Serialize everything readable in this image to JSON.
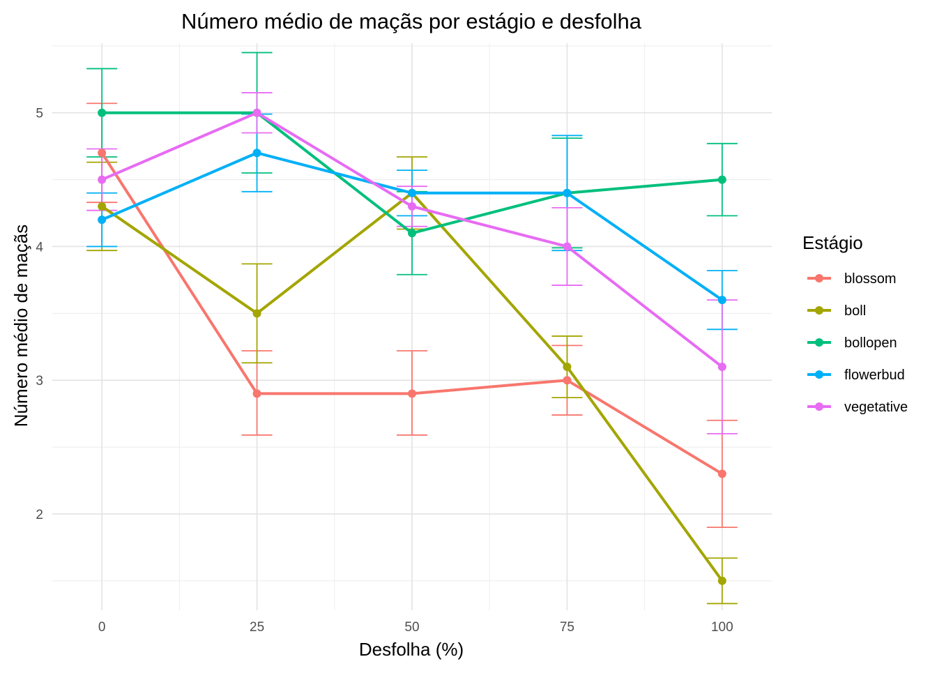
{
  "chart_data": {
    "type": "line",
    "title": "Número médio de maçãs por estágio e desfolha",
    "xlabel": "Desfolha (%)",
    "ylabel": "Número médio de maçãs",
    "x": [
      0,
      25,
      50,
      75,
      100
    ],
    "x_ticks": [
      "0",
      "25",
      "50",
      "75",
      "100"
    ],
    "y_ticks": [
      2,
      3,
      4,
      5
    ],
    "xlim": [
      -8,
      108
    ],
    "ylim": [
      1.28,
      5.52
    ],
    "grid": true,
    "legend_title": "Estágio",
    "legend_position": "right",
    "series": [
      {
        "name": "blossom",
        "color": "#F8766D",
        "values": [
          4.7,
          2.9,
          2.9,
          3.0,
          2.3
        ],
        "error_low": [
          4.33,
          2.59,
          2.59,
          2.74,
          1.9
        ],
        "error_high": [
          5.07,
          3.22,
          3.22,
          3.26,
          2.7
        ]
      },
      {
        "name": "boll",
        "color": "#A3A500",
        "values": [
          4.3,
          3.5,
          4.4,
          3.1,
          1.5
        ],
        "error_low": [
          3.97,
          3.13,
          4.13,
          2.87,
          1.33
        ],
        "error_high": [
          4.63,
          3.87,
          4.67,
          3.33,
          1.67
        ]
      },
      {
        "name": "bollopen",
        "color": "#00BF7D",
        "values": [
          5.0,
          5.0,
          4.1,
          4.4,
          4.5
        ],
        "error_low": [
          4.67,
          4.55,
          3.79,
          3.99,
          4.23
        ],
        "error_high": [
          5.33,
          5.45,
          4.41,
          4.81,
          4.77
        ]
      },
      {
        "name": "flowerbud",
        "color": "#00B0F6",
        "values": [
          4.2,
          4.7,
          4.4,
          4.4,
          3.6
        ],
        "error_low": [
          4.0,
          4.41,
          4.23,
          3.97,
          3.38
        ],
        "error_high": [
          4.4,
          4.99,
          4.57,
          4.83,
          3.82
        ]
      },
      {
        "name": "vegetative",
        "color": "#E76BF3",
        "values": [
          4.5,
          5.0,
          4.3,
          4.0,
          3.1
        ],
        "error_low": [
          4.27,
          4.85,
          4.15,
          3.71,
          2.6
        ],
        "error_high": [
          4.73,
          5.15,
          4.45,
          4.29,
          3.6
        ]
      }
    ]
  }
}
